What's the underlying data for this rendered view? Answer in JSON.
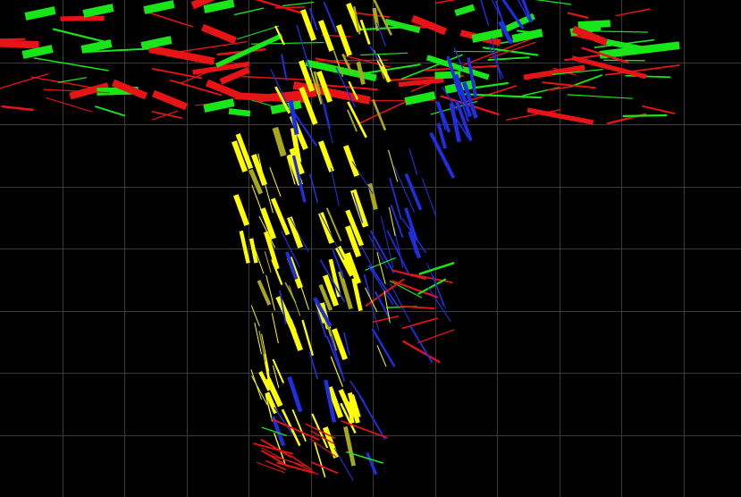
{
  "view": {
    "background_color": "#000000",
    "grid": {
      "visible": true,
      "color": "#3a3a3a",
      "columns": 12,
      "rows": 8
    },
    "segment_colors": {
      "yellow": "#ffff00",
      "dark_yellow": "#a8a81a",
      "blue": "#1f2fe0",
      "green": "#19e619",
      "red": "#e61414"
    },
    "segment_types": [
      "yellow",
      "dark_yellow",
      "blue",
      "green",
      "red"
    ]
  }
}
